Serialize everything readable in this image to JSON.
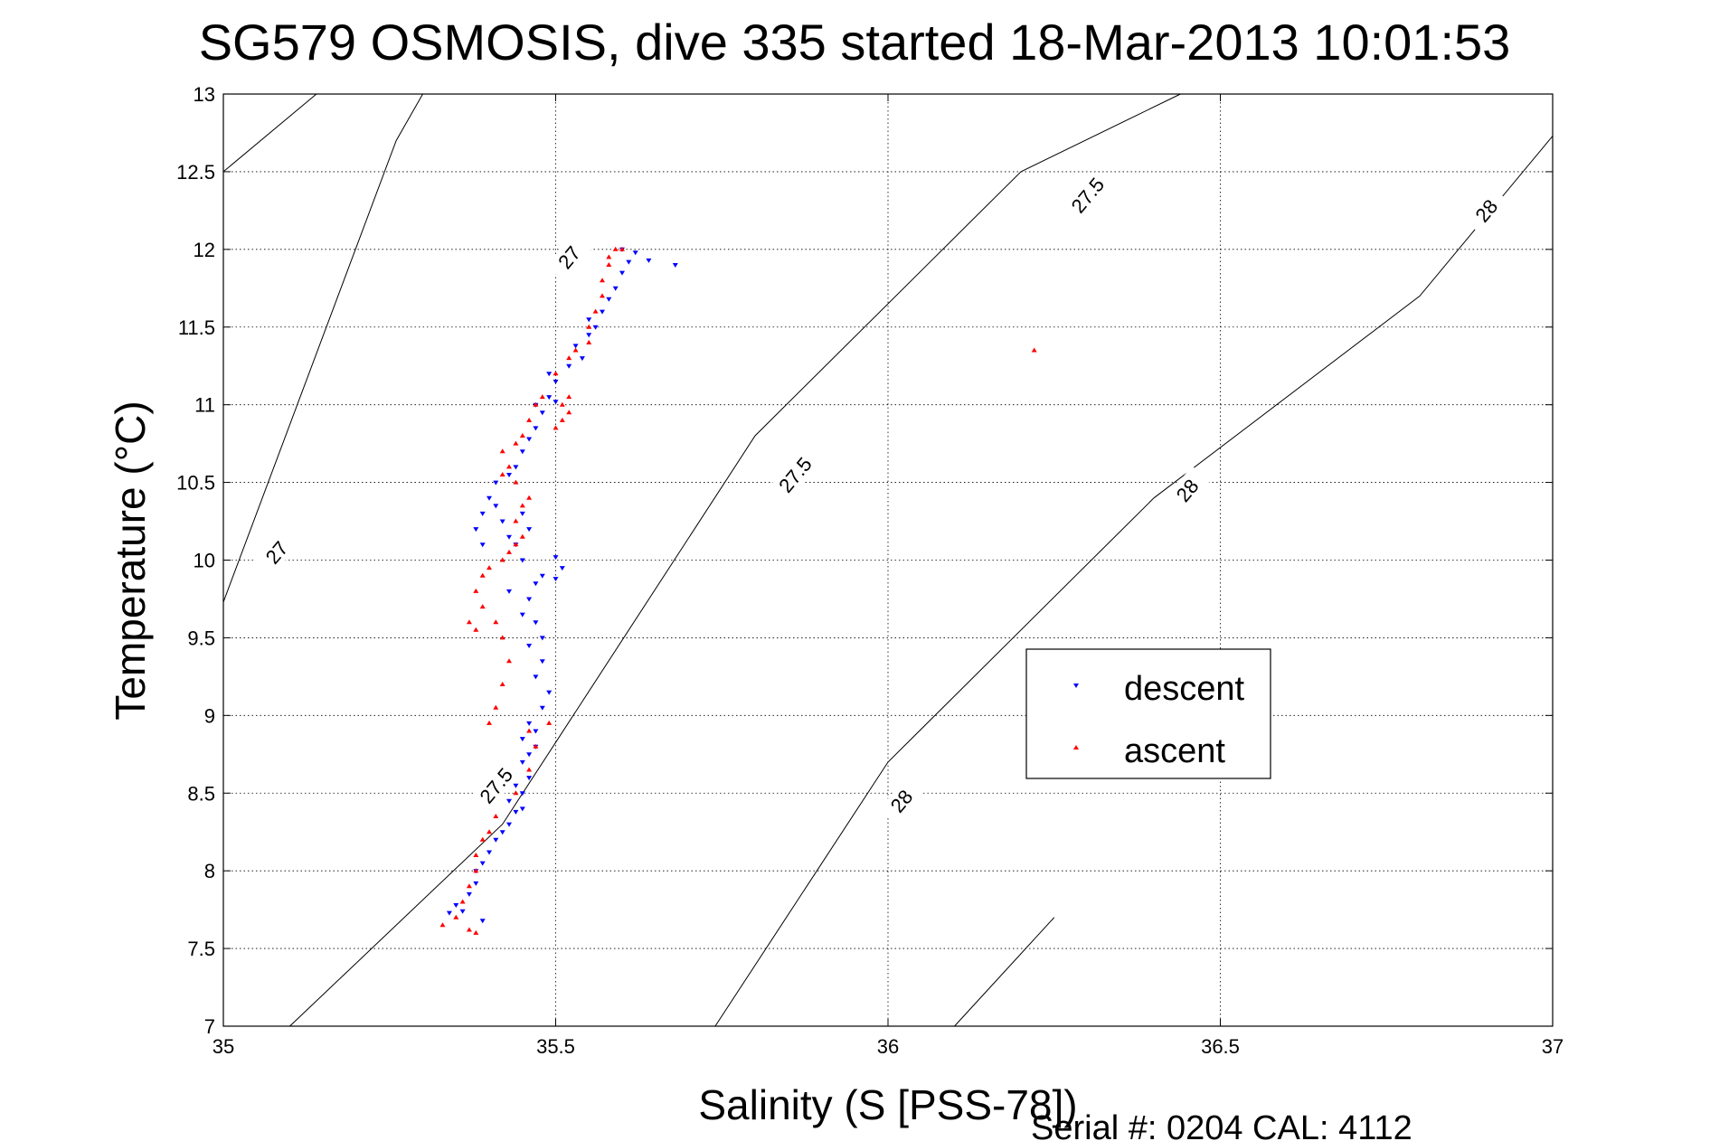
{
  "chart_data": {
    "type": "scatter",
    "title": "SG579 OSMOSIS, dive 335 started 18-Mar-2013 10:01:53",
    "xlabel": "Salinity (S [PSS-78])",
    "ylabel": "Temperature (°C)",
    "xlim": [
      35,
      37
    ],
    "ylim": [
      7,
      13
    ],
    "x_ticks": [
      "35",
      "35.5",
      "36",
      "36.5",
      "37"
    ],
    "y_ticks": [
      "7",
      "7.5",
      "8",
      "8.5",
      "9",
      "9.5",
      "10",
      "10.5",
      "11",
      "11.5",
      "12",
      "12.5",
      "13"
    ],
    "grid": true,
    "legend_position": "right-center",
    "density_contours": [
      {
        "label": "27",
        "line": [
          [
            35.0,
            9.73
          ],
          [
            35.26,
            12.7
          ],
          [
            35.3,
            13.0
          ]
        ],
        "labels_at": [
          [
            35.08,
            10.05
          ],
          [
            35.52,
            11.95
          ]
        ]
      },
      {
        "label": "27",
        "line": [
          [
            35.0,
            12.5
          ],
          [
            35.14,
            13.0
          ]
        ],
        "labels_at": []
      },
      {
        "label": "27.5",
        "line": [
          [
            35.1,
            7.0
          ],
          [
            35.42,
            8.3
          ],
          [
            35.8,
            10.8
          ],
          [
            36.2,
            12.5
          ],
          [
            36.44,
            13.0
          ]
        ],
        "labels_at": [
          [
            35.41,
            8.55
          ],
          [
            35.86,
            10.55
          ],
          [
            36.3,
            12.35
          ]
        ]
      },
      {
        "label": "28",
        "line": [
          [
            35.74,
            7.0
          ],
          [
            36.0,
            8.7
          ],
          [
            36.4,
            10.4
          ],
          [
            36.8,
            11.7
          ],
          [
            37.0,
            12.73
          ]
        ],
        "labels_at": [
          [
            36.02,
            8.45
          ],
          [
            36.45,
            10.45
          ],
          [
            36.9,
            12.25
          ]
        ]
      },
      {
        "label": "",
        "line": [
          [
            36.1,
            7.0
          ],
          [
            36.25,
            7.7
          ]
        ],
        "labels_at": []
      }
    ],
    "series": [
      {
        "name": "descent",
        "color": "#0000ff",
        "marker": "triangle-down",
        "points": [
          [
            35.34,
            7.73
          ],
          [
            35.36,
            7.74
          ],
          [
            35.39,
            7.68
          ],
          [
            35.35,
            7.78
          ],
          [
            35.37,
            7.85
          ],
          [
            35.38,
            7.92
          ],
          [
            35.38,
            8.0
          ],
          [
            35.39,
            8.05
          ],
          [
            35.4,
            8.12
          ],
          [
            35.41,
            8.2
          ],
          [
            35.42,
            8.25
          ],
          [
            35.43,
            8.3
          ],
          [
            35.44,
            8.38
          ],
          [
            35.45,
            8.4
          ],
          [
            35.43,
            8.45
          ],
          [
            35.45,
            8.5
          ],
          [
            35.44,
            8.55
          ],
          [
            35.46,
            8.6
          ],
          [
            35.45,
            8.7
          ],
          [
            35.46,
            8.75
          ],
          [
            35.47,
            8.8
          ],
          [
            35.45,
            8.85
          ],
          [
            35.47,
            8.9
          ],
          [
            35.46,
            8.95
          ],
          [
            35.48,
            9.05
          ],
          [
            35.49,
            9.15
          ],
          [
            35.47,
            9.25
          ],
          [
            35.48,
            9.35
          ],
          [
            35.46,
            9.45
          ],
          [
            35.48,
            9.5
          ],
          [
            35.47,
            9.6
          ],
          [
            35.45,
            9.65
          ],
          [
            35.46,
            9.75
          ],
          [
            35.43,
            9.8
          ],
          [
            35.47,
            9.85
          ],
          [
            35.5,
            9.88
          ],
          [
            35.51,
            9.95
          ],
          [
            35.5,
            10.02
          ],
          [
            35.48,
            9.9
          ],
          [
            35.45,
            10.0
          ],
          [
            35.44,
            10.1
          ],
          [
            35.46,
            10.2
          ],
          [
            35.45,
            10.3
          ],
          [
            35.43,
            10.15
          ],
          [
            35.42,
            10.25
          ],
          [
            35.41,
            10.35
          ],
          [
            35.39,
            10.1
          ],
          [
            35.38,
            10.2
          ],
          [
            35.39,
            10.3
          ],
          [
            35.4,
            10.4
          ],
          [
            35.41,
            10.5
          ],
          [
            35.43,
            10.55
          ],
          [
            35.44,
            10.6
          ],
          [
            35.45,
            10.7
          ],
          [
            35.46,
            10.78
          ],
          [
            35.47,
            10.85
          ],
          [
            35.48,
            10.95
          ],
          [
            35.47,
            11.0
          ],
          [
            35.49,
            11.05
          ],
          [
            35.5,
            11.02
          ],
          [
            35.5,
            11.15
          ],
          [
            35.49,
            11.2
          ],
          [
            35.52,
            11.25
          ],
          [
            35.54,
            11.3
          ],
          [
            35.53,
            11.38
          ],
          [
            35.55,
            11.45
          ],
          [
            35.56,
            11.5
          ],
          [
            35.55,
            11.55
          ],
          [
            35.57,
            11.6
          ],
          [
            35.58,
            11.68
          ],
          [
            35.59,
            11.75
          ],
          [
            35.6,
            11.85
          ],
          [
            35.61,
            11.92
          ],
          [
            35.62,
            11.98
          ],
          [
            35.6,
            12.0
          ],
          [
            35.64,
            11.93
          ],
          [
            35.68,
            11.9
          ]
        ]
      },
      {
        "name": "ascent",
        "color": "#ff0000",
        "marker": "triangle-up",
        "points": [
          [
            35.33,
            7.65
          ],
          [
            35.35,
            7.7
          ],
          [
            35.37,
            7.62
          ],
          [
            35.38,
            7.6
          ],
          [
            35.36,
            7.8
          ],
          [
            35.37,
            7.9
          ],
          [
            35.38,
            8.0
          ],
          [
            35.38,
            8.1
          ],
          [
            35.39,
            8.2
          ],
          [
            35.4,
            8.25
          ],
          [
            35.41,
            8.35
          ],
          [
            35.44,
            8.5
          ],
          [
            35.46,
            8.65
          ],
          [
            35.47,
            8.8
          ],
          [
            35.49,
            8.95
          ],
          [
            35.46,
            8.9
          ],
          [
            35.4,
            8.95
          ],
          [
            35.41,
            9.05
          ],
          [
            35.42,
            9.2
          ],
          [
            35.43,
            9.35
          ],
          [
            35.42,
            9.5
          ],
          [
            35.41,
            9.6
          ],
          [
            35.38,
            9.55
          ],
          [
            35.37,
            9.6
          ],
          [
            35.39,
            9.7
          ],
          [
            35.38,
            9.8
          ],
          [
            35.39,
            9.9
          ],
          [
            35.4,
            9.95
          ],
          [
            35.42,
            10.0
          ],
          [
            35.43,
            10.05
          ],
          [
            35.44,
            10.1
          ],
          [
            35.45,
            10.15
          ],
          [
            35.44,
            10.25
          ],
          [
            35.45,
            10.35
          ],
          [
            35.46,
            10.4
          ],
          [
            35.44,
            10.5
          ],
          [
            35.42,
            10.55
          ],
          [
            35.43,
            10.6
          ],
          [
            35.42,
            10.7
          ],
          [
            35.44,
            10.75
          ],
          [
            35.45,
            10.8
          ],
          [
            35.46,
            10.9
          ],
          [
            35.47,
            11.0
          ],
          [
            35.48,
            11.05
          ],
          [
            35.5,
            10.85
          ],
          [
            35.51,
            10.9
          ],
          [
            35.52,
            10.95
          ],
          [
            35.51,
            11.0
          ],
          [
            35.52,
            11.05
          ],
          [
            35.5,
            11.2
          ],
          [
            35.52,
            11.3
          ],
          [
            35.53,
            11.35
          ],
          [
            35.55,
            11.4
          ],
          [
            35.55,
            11.5
          ],
          [
            35.56,
            11.6
          ],
          [
            35.57,
            11.7
          ],
          [
            35.57,
            11.8
          ],
          [
            35.58,
            11.9
          ],
          [
            35.58,
            11.95
          ],
          [
            35.59,
            12.0
          ],
          [
            35.6,
            12.0
          ],
          [
            36.22,
            11.35
          ]
        ]
      }
    ],
    "footer": "Serial #: 0204  CAL: 4112"
  }
}
